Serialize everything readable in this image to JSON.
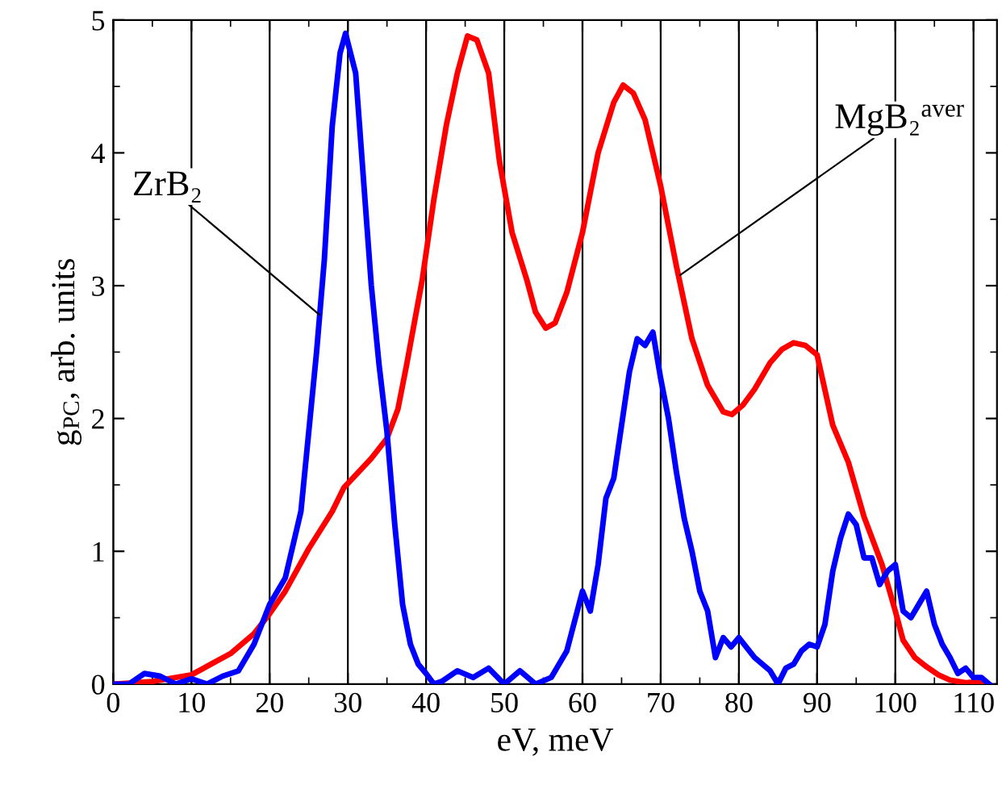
{
  "chart_data": {
    "type": "line",
    "xlabel": "eV, meV",
    "ylabel": "g$_{PC}$, arb. units",
    "xlim": [
      0,
      113
    ],
    "ylim": [
      0,
      5
    ],
    "xticks": [
      0,
      10,
      20,
      30,
      40,
      50,
      60,
      70,
      80,
      90,
      100,
      110
    ],
    "yticks": [
      0,
      1,
      2,
      3,
      4,
      5
    ],
    "grid": "x",
    "legend": false,
    "marker": "none",
    "line_style": "solid",
    "series": [
      {
        "color": "#ff0000",
        "x": [
          0,
          5,
          10,
          15,
          18,
          20,
          22,
          25,
          28,
          29.5,
          33,
          35,
          36.4,
          37.5,
          39.5,
          41,
          42.6,
          44,
          45.3,
          46.5,
          48,
          49.4,
          51,
          52.9,
          54,
          55.3,
          56.5,
          58,
          60,
          62,
          64,
          65.2,
          66.5,
          68,
          70,
          72,
          74,
          76,
          78,
          79.1,
          80.5,
          82,
          84,
          85.5,
          87,
          88.5,
          90,
          92,
          94,
          96,
          98.3,
          100,
          101,
          102.5,
          104,
          105.5,
          107,
          109,
          111
        ],
        "values": [
          0,
          0.02,
          0.07,
          0.23,
          0.38,
          0.53,
          0.7,
          1.02,
          1.3,
          1.48,
          1.7,
          1.85,
          2.07,
          2.4,
          3.04,
          3.65,
          4.21,
          4.6,
          4.88,
          4.85,
          4.6,
          3.93,
          3.4,
          3.04,
          2.8,
          2.68,
          2.72,
          2.95,
          3.4,
          4.0,
          4.38,
          4.51,
          4.45,
          4.25,
          3.75,
          3.15,
          2.6,
          2.25,
          2.05,
          2.03,
          2.1,
          2.22,
          2.42,
          2.52,
          2.57,
          2.55,
          2.48,
          1.95,
          1.67,
          1.26,
          0.9,
          0.55,
          0.33,
          0.2,
          0.13,
          0.07,
          0.03,
          0.01,
          0.02
        ]
      },
      {
        "color": "#0000ff",
        "x": [
          0,
          2,
          4,
          6,
          8,
          10,
          12,
          14,
          16,
          18,
          20,
          22,
          24,
          26,
          27,
          28,
          29,
          29.7,
          31,
          32,
          33,
          34,
          35,
          36,
          37,
          38,
          39,
          40,
          41,
          42,
          44,
          46,
          48,
          50,
          52,
          54,
          56,
          58,
          60,
          61,
          62,
          63,
          64,
          65,
          66,
          67,
          68,
          69,
          70,
          71,
          72,
          73,
          74,
          75,
          76,
          77,
          78,
          79,
          80,
          82,
          84,
          85,
          86,
          87,
          88,
          89,
          90,
          91,
          92,
          93,
          94,
          95,
          96,
          97,
          98,
          99,
          100,
          101,
          102,
          103,
          104,
          105,
          106,
          107,
          108,
          109,
          110,
          111,
          112
        ],
        "values": [
          0,
          0,
          0.08,
          0.06,
          0,
          0.04,
          0,
          0.06,
          0.1,
          0.3,
          0.6,
          0.8,
          1.3,
          2.5,
          3.2,
          4.2,
          4.75,
          4.9,
          4.6,
          3.8,
          3.0,
          2.4,
          1.9,
          1.2,
          0.6,
          0.3,
          0.15,
          0.08,
          0,
          0.02,
          0.1,
          0.05,
          0.12,
          0,
          0.1,
          0,
          0.05,
          0.25,
          0.7,
          0.55,
          0.9,
          1.4,
          1.55,
          1.95,
          2.35,
          2.6,
          2.55,
          2.65,
          2.3,
          2.0,
          1.6,
          1.25,
          1.0,
          0.7,
          0.55,
          0.2,
          0.35,
          0.28,
          0.35,
          0.2,
          0.1,
          0,
          0.12,
          0.15,
          0.25,
          0.3,
          0.28,
          0.45,
          0.85,
          1.1,
          1.28,
          1.2,
          0.95,
          0.95,
          0.75,
          0.85,
          0.9,
          0.55,
          0.5,
          0.6,
          0.7,
          0.45,
          0.3,
          0.2,
          0.08,
          0.12,
          0.05,
          0.05,
          0
        ]
      }
    ],
    "annotations": [
      {
        "text": "ZrB₂",
        "x": 26.4,
        "y": 2.78
      },
      {
        "text": "MgB₂$^{aver}$",
        "x": 72.5,
        "y": 3.08
      }
    ]
  }
}
